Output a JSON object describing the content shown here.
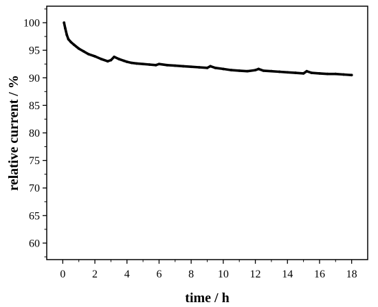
{
  "chart_data": {
    "type": "line",
    "title": "",
    "xlabel": "time / h",
    "ylabel": "relative current / %",
    "xlim": [
      -1,
      19
    ],
    "ylim": [
      57,
      103
    ],
    "xticks": [
      0,
      2,
      4,
      6,
      8,
      10,
      12,
      14,
      16,
      18
    ],
    "yticks": [
      60,
      65,
      70,
      75,
      80,
      85,
      90,
      95,
      100
    ],
    "minor_ticks": true,
    "grid": false,
    "legend": "none",
    "series": [
      {
        "color": "#000000",
        "x": [
          0.08,
          0.15,
          0.25,
          0.35,
          0.5,
          0.7,
          1.0,
          1.3,
          1.6,
          2.0,
          2.4,
          2.8,
          3.0,
          3.2,
          3.5,
          3.8,
          4.0,
          4.3,
          4.6,
          5.0,
          5.4,
          5.8,
          6.0,
          6.5,
          7.0,
          7.5,
          8.0,
          8.5,
          9.0,
          9.2,
          9.5,
          10.0,
          10.5,
          11.0,
          11.5,
          12.0,
          12.2,
          12.5,
          13.0,
          13.5,
          14.0,
          14.5,
          15.0,
          15.2,
          15.5,
          16.0,
          16.5,
          17.0,
          17.5,
          18.0
        ],
        "y": [
          100.0,
          99.0,
          97.8,
          97.0,
          96.5,
          96.0,
          95.3,
          94.8,
          94.3,
          93.9,
          93.4,
          93.0,
          93.2,
          93.8,
          93.4,
          93.1,
          92.9,
          92.7,
          92.6,
          92.5,
          92.4,
          92.3,
          92.5,
          92.3,
          92.2,
          92.1,
          92.0,
          91.9,
          91.8,
          92.1,
          91.8,
          91.6,
          91.4,
          91.3,
          91.2,
          91.4,
          91.6,
          91.3,
          91.2,
          91.1,
          91.0,
          90.9,
          90.8,
          91.2,
          90.9,
          90.8,
          90.7,
          90.7,
          90.6,
          90.5
        ]
      }
    ]
  }
}
